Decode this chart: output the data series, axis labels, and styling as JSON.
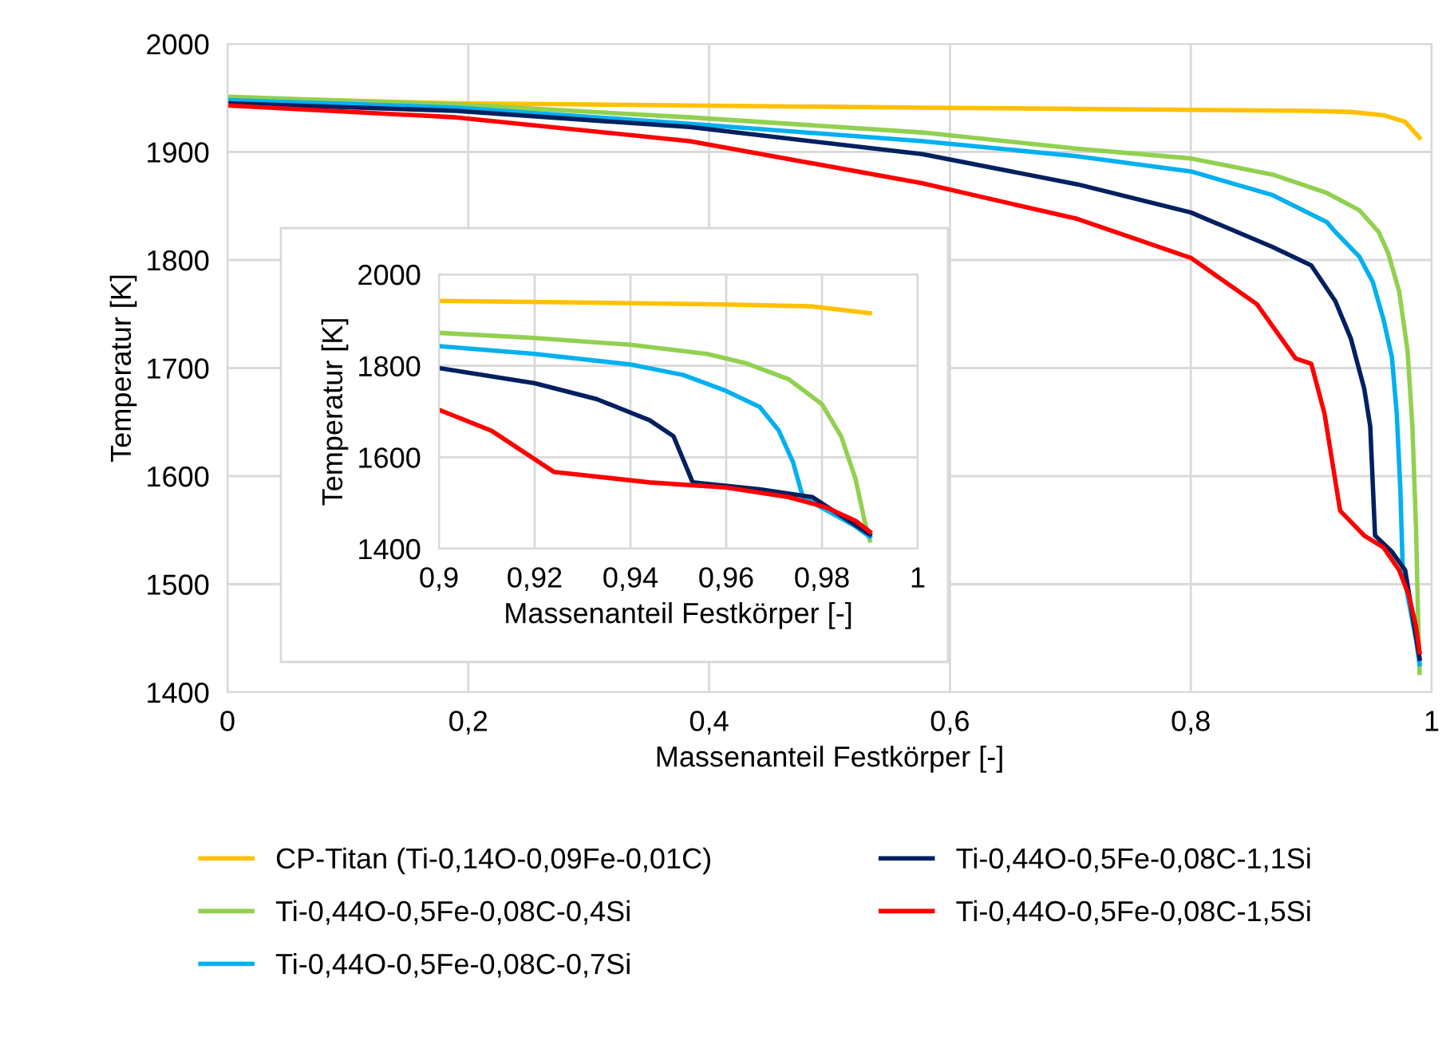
{
  "chart_data": [
    {
      "type": "line",
      "xlabel": "Massenanteil Festkörper [-]",
      "ylabel": "Temperatur [K]",
      "xlim": [
        0,
        1
      ],
      "ylim": [
        1400,
        2000
      ],
      "xticks": [
        0,
        {
          "value": 0.2,
          "label": "0,2"
        },
        {
          "value": 0.4,
          "label": "0,4"
        },
        {
          "value": 0.6,
          "label": "0,6"
        },
        {
          "value": 0.8,
          "label": "0,8"
        },
        1
      ],
      "yticks": [
        1400,
        1500,
        1600,
        1700,
        1800,
        1900,
        2000
      ],
      "grid": true,
      "legend": "bottom",
      "marker": "none",
      "series": [
        {
          "name": "CP-Titan (Ti-0,14O-0,09Fe-0,01C)",
          "color": "#ffc000",
          "x": [
            0,
            0.19,
            0.577,
            0.8,
            0.9,
            0.933,
            0.96,
            0.978,
            0.99
          ],
          "values": [
            1950,
            1945,
            1941,
            1939,
            1938,
            1937,
            1934,
            1928,
            1913
          ]
        },
        {
          "name": "Ti-0,44O-0,5Fe-0,08C-0,4Si",
          "color": "#92d050",
          "x": [
            0,
            0.19,
            0.384,
            0.577,
            0.706,
            0.8,
            0.868,
            0.913,
            0.94,
            0.956,
            0.964,
            0.973,
            0.98,
            0.984,
            0.987,
            0.9889,
            0.99
          ],
          "values": [
            1951,
            1944,
            1932,
            1918,
            1903,
            1894,
            1879,
            1862,
            1846,
            1826,
            1806,
            1771,
            1716,
            1646,
            1553,
            1461,
            1418
          ]
        },
        {
          "name": "Ti-0,44O-0,5Fe-0,08C-0,7Si",
          "color": "#00b0f0",
          "x": [
            0,
            0.19,
            0.384,
            0.577,
            0.706,
            0.8,
            0.868,
            0.913,
            0.92,
            0.94,
            0.951,
            0.96,
            0.967,
            0.971,
            0.974,
            0.976,
            0.982,
            0.987,
            0.99
          ],
          "values": [
            1948,
            1941,
            1926,
            1910,
            1896,
            1882,
            1860,
            1835,
            1826,
            1803,
            1780,
            1745,
            1710,
            1658,
            1588,
            1513,
            1478,
            1449,
            1426
          ]
        },
        {
          "name": "Ti-0,44O-0,5Fe-0,08C-1,1Si",
          "color": "#002060",
          "x": [
            0,
            0.19,
            0.384,
            0.577,
            0.706,
            0.8,
            0.868,
            0.9,
            0.92,
            0.933,
            0.944,
            0.949,
            0.953,
            0.967,
            0.978,
            0.984,
            0.99
          ],
          "values": [
            1945,
            1938,
            1923,
            1898,
            1870,
            1844,
            1812,
            1795,
            1762,
            1727,
            1681,
            1646,
            1545,
            1530,
            1513,
            1472,
            1431
          ]
        },
        {
          "name": "Ti-0,44O-0,5Fe-0,08C-1,5Si",
          "color": "#ff0000",
          "x": [
            0,
            0.19,
            0.384,
            0.577,
            0.706,
            0.8,
            0.855,
            0.887,
            0.9,
            0.911,
            0.924,
            0.944,
            0.96,
            0.973,
            0.981,
            0.987,
            0.99
          ],
          "values": [
            1943,
            1932,
            1910,
            1871,
            1838,
            1802,
            1759,
            1709,
            1704,
            1658,
            1568,
            1545,
            1534,
            1513,
            1490,
            1461,
            1437
          ]
        }
      ]
    },
    {
      "type": "line",
      "xlabel": "Massenanteil Festkörper [-]",
      "ylabel": "Temperatur [K]",
      "xlim": [
        0.9,
        1
      ],
      "ylim": [
        1400,
        2000
      ],
      "xticks": [
        {
          "value": 0.9,
          "label": "0,9"
        },
        {
          "value": 0.92,
          "label": "0,92"
        },
        {
          "value": 0.94,
          "label": "0,94"
        },
        {
          "value": 0.96,
          "label": "0,96"
        },
        {
          "value": 0.98,
          "label": "0,98"
        },
        1
      ],
      "yticks": [
        1400,
        1600,
        1800,
        2000
      ],
      "grid": true,
      "marker": "none",
      "series": [
        {
          "color": "#ffc000",
          "x": [
            0.9,
            0.933,
            0.96,
            0.978,
            0.99
          ],
          "values": [
            1942,
            1938,
            1934,
            1930,
            1915
          ]
        },
        {
          "color": "#92d050",
          "x": [
            0.9,
            0.92,
            0.94,
            0.956,
            0.964,
            0.973,
            0.98,
            0.984,
            0.987,
            0.9889,
            0.99
          ],
          "values": [
            1872,
            1861,
            1846,
            1826,
            1806,
            1771,
            1716,
            1646,
            1553,
            1461,
            1418
          ]
        },
        {
          "color": "#00b0f0",
          "x": [
            0.9,
            0.92,
            0.94,
            0.951,
            0.96,
            0.967,
            0.971,
            0.974,
            0.976,
            0.982,
            0.987,
            0.99
          ],
          "values": [
            1843,
            1826,
            1803,
            1780,
            1745,
            1710,
            1658,
            1588,
            1513,
            1478,
            1449,
            1426
          ]
        },
        {
          "color": "#002060",
          "x": [
            0.9,
            0.92,
            0.933,
            0.944,
            0.949,
            0.953,
            0.967,
            0.978,
            0.984,
            0.99
          ],
          "values": [
            1795,
            1762,
            1727,
            1681,
            1646,
            1545,
            1530,
            1513,
            1472,
            1431
          ]
        },
        {
          "color": "#ff0000",
          "x": [
            0.9,
            0.911,
            0.924,
            0.944,
            0.96,
            0.973,
            0.981,
            0.987,
            0.99
          ],
          "values": [
            1704,
            1658,
            1568,
            1545,
            1534,
            1513,
            1490,
            1461,
            1437
          ]
        }
      ]
    }
  ]
}
